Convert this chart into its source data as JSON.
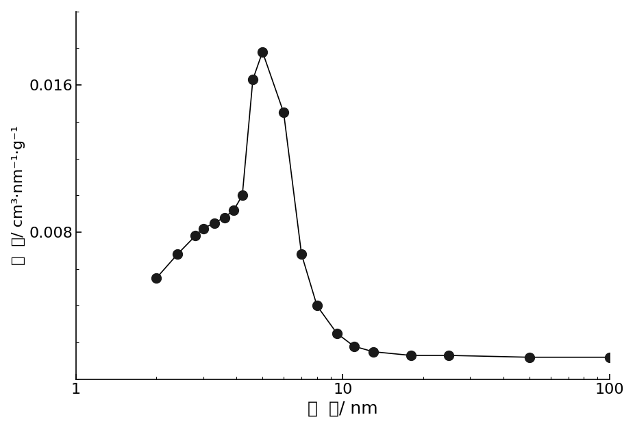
{
  "x": [
    2.0,
    2.4,
    2.8,
    3.0,
    3.3,
    3.6,
    3.9,
    4.2,
    4.6,
    5.0,
    6.0,
    7.0,
    8.0,
    9.5,
    11.0,
    13.0,
    18.0,
    25.0,
    50.0,
    100.0
  ],
  "y": [
    0.0055,
    0.0068,
    0.0078,
    0.0082,
    0.0085,
    0.0088,
    0.0092,
    0.01,
    0.0163,
    0.0178,
    0.0145,
    0.0068,
    0.004,
    0.0025,
    0.0018,
    0.0015,
    0.0013,
    0.0013,
    0.0012,
    0.0012
  ],
  "xlabel_chinese": "孔  径",
  "xlabel_unit": "/ nm",
  "ylabel_chinese": "孔  容",
  "ylabel_unit": "/ cm³·nm⁻¹·g⁻¹",
  "xlim": [
    1,
    100
  ],
  "ylim": [
    0.0,
    0.02
  ],
  "yticks": [
    0.008,
    0.016
  ],
  "background_color": "#ffffff",
  "line_color": "#000000",
  "marker_color": "#1a1a1a",
  "marker_size": 10,
  "linewidth": 1.2,
  "xlabel_fontsize": 18,
  "ylabel_fontsize": 16,
  "tick_fontsize": 16
}
